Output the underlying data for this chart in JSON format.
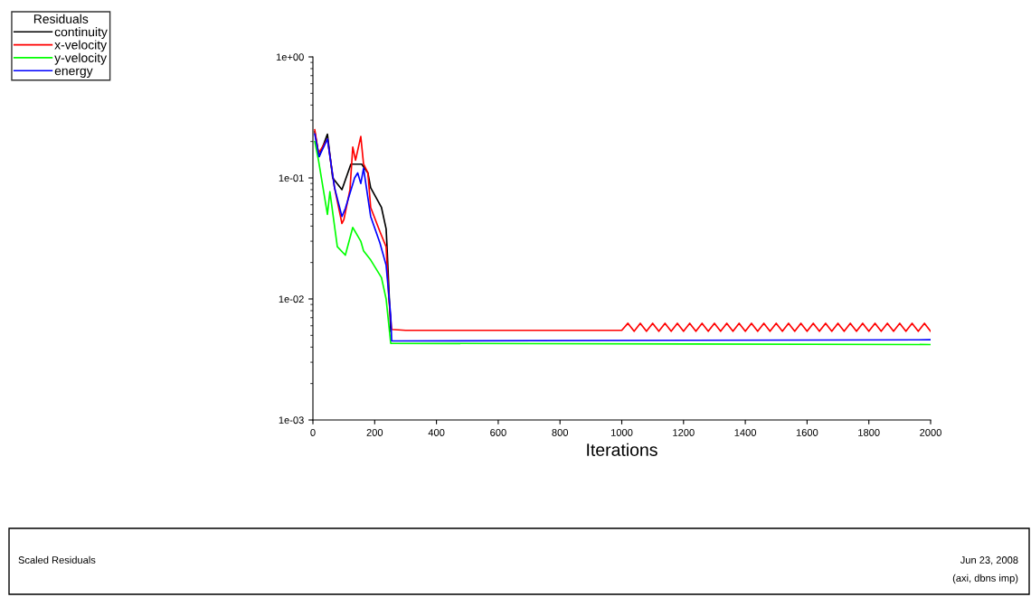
{
  "chart_data": {
    "type": "line",
    "xlabel": "Iterations",
    "legend_title": "Residuals",
    "legend": "top left",
    "log": "y",
    "xlim": [
      0,
      2000
    ],
    "xticks": [
      0,
      200,
      400,
      600,
      800,
      1000,
      1200,
      1400,
      1600,
      1800,
      2000
    ],
    "ylim": [
      0.001,
      1
    ],
    "yticks": [
      {
        "value": 1,
        "label": "1e+00"
      },
      {
        "value": 0.1,
        "label": "1e-01"
      },
      {
        "value": 0.01,
        "label": "1e-02"
      },
      {
        "value": 0.001,
        "label": "1e-03"
      }
    ],
    "grid": false,
    "annotations": [
      "Scaled Residuals",
      "Jun 23, 2008",
      "(axi, dbns imp)"
    ],
    "series": [
      {
        "name": "continuity",
        "color": "#000000",
        "x": [
          6,
          20,
          47,
          64,
          94,
          123,
          158,
          178,
          187,
          222,
          237,
          240,
          252
        ],
        "values": [
          0.24,
          0.15,
          0.23,
          0.1,
          0.08,
          0.13,
          0.13,
          0.11,
          0.083,
          0.057,
          0.038,
          0.027,
          0.0054
        ]
      },
      {
        "name": "x-velocity",
        "color": "#ff0000",
        "x": [
          6,
          18,
          47,
          70,
          94,
          100,
          120,
          129,
          138,
          155,
          164,
          178,
          187,
          217,
          237,
          246,
          255,
          300,
          1000,
          1020,
          1040,
          1060,
          1080,
          1100,
          1120,
          1140,
          1160,
          1180,
          1200,
          1220,
          1240,
          1260,
          1280,
          1300,
          1320,
          1340,
          1360,
          1380,
          1400,
          1420,
          1440,
          1460,
          1480,
          1500,
          1520,
          1540,
          1560,
          1580,
          1600,
          1620,
          1640,
          1660,
          1680,
          1700,
          1720,
          1740,
          1760,
          1780,
          1800,
          1820,
          1840,
          1860,
          1880,
          1900,
          1920,
          1940,
          1960,
          1980,
          2000
        ],
        "values": [
          0.25,
          0.16,
          0.21,
          0.083,
          0.042,
          0.045,
          0.08,
          0.18,
          0.14,
          0.22,
          0.13,
          0.11,
          0.057,
          0.036,
          0.027,
          0.01,
          0.0056,
          0.0055,
          0.0055,
          0.0063,
          0.0054,
          0.0063,
          0.0054,
          0.0063,
          0.0054,
          0.0063,
          0.0054,
          0.0063,
          0.0054,
          0.0063,
          0.0054,
          0.0063,
          0.0054,
          0.0063,
          0.0054,
          0.0063,
          0.0054,
          0.0063,
          0.0054,
          0.0063,
          0.0054,
          0.0063,
          0.0054,
          0.0063,
          0.0054,
          0.0063,
          0.0054,
          0.0063,
          0.0054,
          0.0063,
          0.0054,
          0.0063,
          0.0054,
          0.0063,
          0.0054,
          0.0063,
          0.0054,
          0.0063,
          0.0054,
          0.0063,
          0.0054,
          0.0063,
          0.0054,
          0.0063,
          0.0054,
          0.0063,
          0.0054,
          0.0063,
          0.0054
        ]
      },
      {
        "name": "y-velocity",
        "color": "#00ff00",
        "x": [
          6,
          18,
          47,
          55,
          79,
          105,
          129,
          155,
          164,
          187,
          222,
          237,
          252,
          2000
        ],
        "values": [
          0.2,
          0.14,
          0.05,
          0.077,
          0.027,
          0.023,
          0.039,
          0.03,
          0.025,
          0.021,
          0.015,
          0.01,
          0.0043,
          0.0042
        ]
      },
      {
        "name": "energy",
        "color": "#0000ff",
        "x": [
          6,
          20,
          47,
          70,
          94,
          105,
          135,
          145,
          155,
          164,
          187,
          217,
          237,
          252,
          255,
          2000
        ],
        "values": [
          0.23,
          0.15,
          0.21,
          0.083,
          0.048,
          0.056,
          0.1,
          0.11,
          0.09,
          0.12,
          0.048,
          0.029,
          0.019,
          0.0072,
          0.0045,
          0.0046
        ]
      }
    ]
  }
}
